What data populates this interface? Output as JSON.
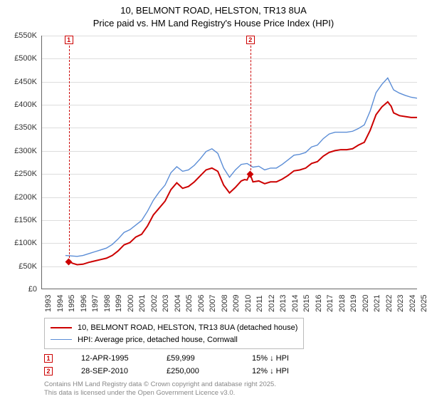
{
  "title_line1": "10, BELMONT ROAD, HELSTON, TR13 8UA",
  "title_line2": "Price paid vs. HM Land Registry's House Price Index (HPI)",
  "chart": {
    "type": "line",
    "background_color": "#ffffff",
    "grid_color": "#dddddd",
    "axis_color": "#666666",
    "title_fontsize": 13,
    "label_fontsize": 11,
    "xlim": [
      1993,
      2025
    ],
    "ylim": [
      0,
      550
    ],
    "ytick_step": 50,
    "yticks": [
      0,
      50,
      100,
      150,
      200,
      250,
      300,
      350,
      400,
      450,
      500,
      550
    ],
    "ytick_labels": [
      "£0",
      "£50K",
      "£100K",
      "£150K",
      "£200K",
      "£250K",
      "£300K",
      "£350K",
      "£400K",
      "£450K",
      "£500K",
      "£550K"
    ],
    "xticks": [
      1993,
      1994,
      1995,
      1996,
      1997,
      1998,
      1999,
      2000,
      2001,
      2002,
      2003,
      2004,
      2005,
      2006,
      2007,
      2008,
      2009,
      2010,
      2011,
      2012,
      2013,
      2014,
      2015,
      2016,
      2017,
      2018,
      2019,
      2020,
      2021,
      2022,
      2023,
      2024,
      2025
    ],
    "xtick_labels": [
      "1993",
      "1994",
      "1995",
      "1996",
      "1997",
      "1998",
      "1999",
      "2000",
      "2001",
      "2002",
      "2003",
      "2004",
      "2005",
      "2006",
      "2007",
      "2008",
      "2009",
      "2010",
      "2011",
      "2012",
      "2013",
      "2014",
      "2015",
      "2016",
      "2017",
      "2018",
      "2019",
      "2020",
      "2021",
      "2022",
      "2023",
      "2024",
      "2025"
    ],
    "series": [
      {
        "name": "red",
        "label": "10, BELMONT ROAD, HELSTON, TR13 8UA (detached house)",
        "color": "#cc0000",
        "line_width": 2,
        "data": [
          [
            1995.28,
            60
          ],
          [
            1995.6,
            55
          ],
          [
            1996.0,
            52
          ],
          [
            1996.5,
            53
          ],
          [
            1997.0,
            57
          ],
          [
            1997.5,
            60
          ],
          [
            1998.0,
            63
          ],
          [
            1998.5,
            66
          ],
          [
            1999.0,
            72
          ],
          [
            1999.5,
            82
          ],
          [
            2000.0,
            95
          ],
          [
            2000.5,
            100
          ],
          [
            2001.0,
            112
          ],
          [
            2001.5,
            118
          ],
          [
            2002.0,
            136
          ],
          [
            2002.5,
            160
          ],
          [
            2003.0,
            175
          ],
          [
            2003.5,
            190
          ],
          [
            2004.0,
            215
          ],
          [
            2004.5,
            230
          ],
          [
            2005.0,
            218
          ],
          [
            2005.5,
            222
          ],
          [
            2006.0,
            232
          ],
          [
            2006.5,
            245
          ],
          [
            2007.0,
            258
          ],
          [
            2007.5,
            262
          ],
          [
            2008.0,
            255
          ],
          [
            2008.5,
            225
          ],
          [
            2009.0,
            208
          ],
          [
            2009.5,
            220
          ],
          [
            2010.0,
            234
          ],
          [
            2010.28,
            237
          ],
          [
            2010.5,
            236
          ],
          [
            2010.74,
            250
          ],
          [
            2011.0,
            232
          ],
          [
            2011.5,
            234
          ],
          [
            2012.0,
            228
          ],
          [
            2012.5,
            232
          ],
          [
            2013.0,
            232
          ],
          [
            2013.5,
            238
          ],
          [
            2014.0,
            246
          ],
          [
            2014.5,
            256
          ],
          [
            2015.0,
            258
          ],
          [
            2015.5,
            262
          ],
          [
            2016.0,
            272
          ],
          [
            2016.5,
            276
          ],
          [
            2017.0,
            288
          ],
          [
            2017.5,
            296
          ],
          [
            2018.0,
            300
          ],
          [
            2018.5,
            302
          ],
          [
            2019.0,
            302
          ],
          [
            2019.5,
            304
          ],
          [
            2020.0,
            312
          ],
          [
            2020.5,
            318
          ],
          [
            2021.0,
            344
          ],
          [
            2021.5,
            378
          ],
          [
            2022.0,
            395
          ],
          [
            2022.5,
            406
          ],
          [
            2022.8,
            396
          ],
          [
            2023.0,
            382
          ],
          [
            2023.5,
            376
          ],
          [
            2024.0,
            374
          ],
          [
            2024.5,
            372
          ],
          [
            2025.0,
            372
          ]
        ]
      },
      {
        "name": "blue",
        "label": "HPI: Average price, detached house, Cornwall",
        "color": "#5b8dd6",
        "line_width": 1.4,
        "data": [
          [
            1995.0,
            72
          ],
          [
            1995.5,
            71
          ],
          [
            1996.0,
            70
          ],
          [
            1996.5,
            72
          ],
          [
            1997.0,
            76
          ],
          [
            1997.5,
            80
          ],
          [
            1998.0,
            84
          ],
          [
            1998.5,
            88
          ],
          [
            1999.0,
            96
          ],
          [
            1999.5,
            108
          ],
          [
            2000.0,
            122
          ],
          [
            2000.5,
            128
          ],
          [
            2001.0,
            138
          ],
          [
            2001.5,
            148
          ],
          [
            2002.0,
            168
          ],
          [
            2002.5,
            192
          ],
          [
            2003.0,
            210
          ],
          [
            2003.5,
            225
          ],
          [
            2004.0,
            252
          ],
          [
            2004.5,
            265
          ],
          [
            2005.0,
            255
          ],
          [
            2005.5,
            258
          ],
          [
            2006.0,
            268
          ],
          [
            2006.5,
            282
          ],
          [
            2007.0,
            298
          ],
          [
            2007.5,
            304
          ],
          [
            2008.0,
            294
          ],
          [
            2008.5,
            262
          ],
          [
            2009.0,
            242
          ],
          [
            2009.5,
            258
          ],
          [
            2010.0,
            270
          ],
          [
            2010.5,
            272
          ],
          [
            2011.0,
            264
          ],
          [
            2011.5,
            266
          ],
          [
            2012.0,
            258
          ],
          [
            2012.5,
            262
          ],
          [
            2013.0,
            262
          ],
          [
            2013.5,
            270
          ],
          [
            2014.0,
            280
          ],
          [
            2014.5,
            290
          ],
          [
            2015.0,
            292
          ],
          [
            2015.5,
            296
          ],
          [
            2016.0,
            308
          ],
          [
            2016.5,
            312
          ],
          [
            2017.0,
            326
          ],
          [
            2017.5,
            336
          ],
          [
            2018.0,
            340
          ],
          [
            2018.5,
            340
          ],
          [
            2019.0,
            340
          ],
          [
            2019.5,
            342
          ],
          [
            2020.0,
            348
          ],
          [
            2020.5,
            356
          ],
          [
            2021.0,
            386
          ],
          [
            2021.5,
            426
          ],
          [
            2022.0,
            444
          ],
          [
            2022.5,
            458
          ],
          [
            2023.0,
            432
          ],
          [
            2023.5,
            425
          ],
          [
            2024.0,
            420
          ],
          [
            2024.5,
            416
          ],
          [
            2025.0,
            414
          ]
        ]
      }
    ],
    "markers": [
      {
        "id": "1",
        "x": 1995.28,
        "y": 60
      },
      {
        "id": "2",
        "x": 2010.74,
        "y": 250
      }
    ]
  },
  "annotations": [
    {
      "id": "1",
      "date": "12-APR-1995",
      "price": "£59,999",
      "hpi": "15% ↓ HPI"
    },
    {
      "id": "2",
      "date": "28-SEP-2010",
      "price": "£250,000",
      "hpi": "12% ↓ HPI"
    }
  ],
  "footer_line1": "Contains HM Land Registry data © Crown copyright and database right 2025.",
  "footer_line2": "This data is licensed under the Open Government Licence v3.0."
}
